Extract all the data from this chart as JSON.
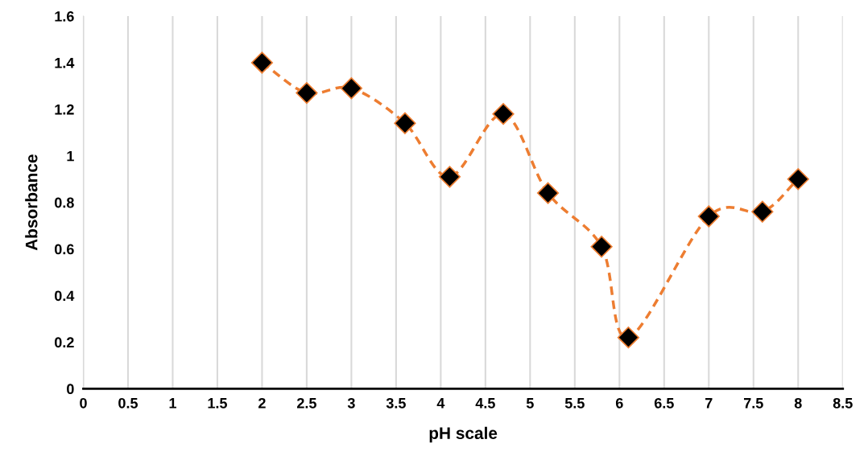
{
  "chart_data": {
    "type": "line",
    "xlabel": "pH scale",
    "ylabel": "Absorbance",
    "x": [
      2,
      2.5,
      3,
      3.6,
      4.1,
      4.7,
      5.2,
      5.8,
      6.1,
      7,
      7.6,
      8
    ],
    "series": [
      {
        "color": "#ed7d31",
        "values": [
          1.4,
          1.27,
          1.29,
          1.14,
          0.91,
          1.18,
          0.84,
          0.61,
          0.22,
          0.74,
          0.76,
          0.9
        ]
      }
    ],
    "xlim": [
      0,
      8.5
    ],
    "xticks": [
      0,
      0.5,
      1,
      1.5,
      2,
      2.5,
      3,
      3.5,
      4,
      4.5,
      5,
      5.5,
      6,
      6.5,
      7,
      7.5,
      8,
      8.5
    ],
    "ylim": [
      0,
      1.6
    ],
    "yticks": [
      0,
      0.2,
      0.4,
      0.6,
      0.8,
      1,
      1.2,
      1.4,
      1.6
    ],
    "grid": "x",
    "marker": "diamond",
    "line_style": "dashed",
    "legend": false
  }
}
